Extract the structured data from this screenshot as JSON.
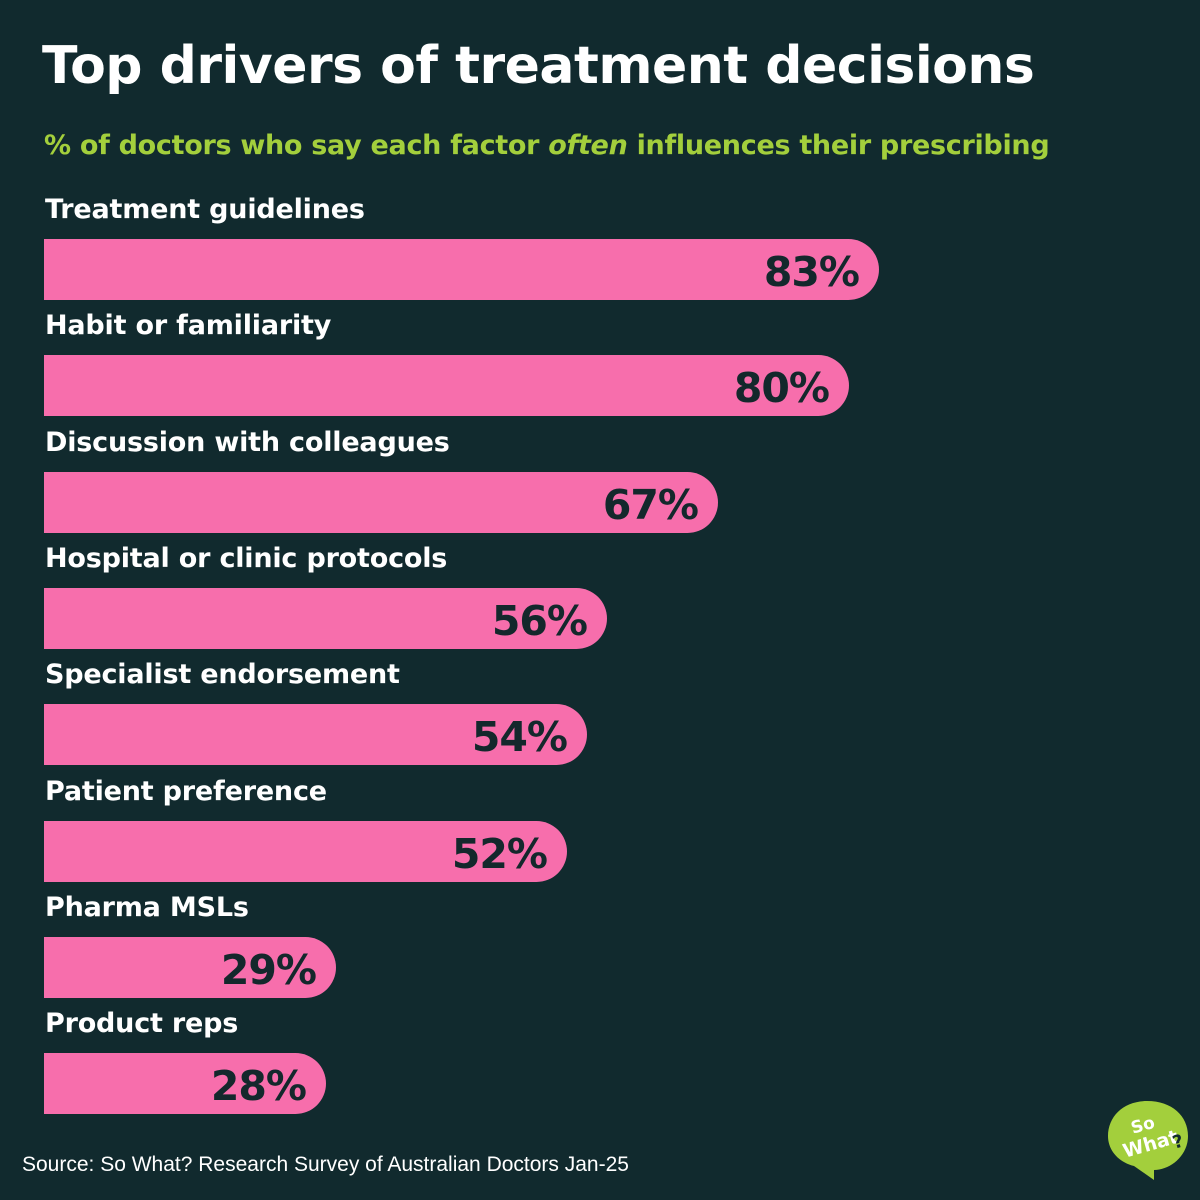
{
  "chart_data": {
    "type": "bar",
    "orientation": "horizontal",
    "title": "Top drivers of treatment decisions",
    "subtitle": {
      "before": "% of doctors who say each factor ",
      "emphasis": "often",
      "after": " influences their prescribing"
    },
    "categories": [
      "Treatment guidelines",
      "Habit or familiarity",
      "Discussion with colleagues",
      "Hospital or clinic protocols",
      "Specialist endorsement",
      "Patient preference",
      "Pharma MSLs",
      "Product reps"
    ],
    "values": [
      83,
      80,
      67,
      56,
      54,
      52,
      29,
      28
    ],
    "value_labels": [
      "83%",
      "80%",
      "67%",
      "56%",
      "54%",
      "52%",
      "29%",
      "28%"
    ],
    "unit": "%",
    "xlim": [
      0,
      100
    ],
    "grid": false,
    "legend": "none"
  },
  "footer": {
    "source": "Source: So What? Research Survey of Australian Doctors Jan-25"
  },
  "logo": {
    "line1": "So",
    "line2": "What",
    "mark": "?"
  },
  "colors": {
    "background": "#112a2e",
    "bar": "#f76eac",
    "title": "#ffffff",
    "subtitle": "#a3cf3c",
    "value_text": "#14282c",
    "logo": "#a3cf3c"
  }
}
